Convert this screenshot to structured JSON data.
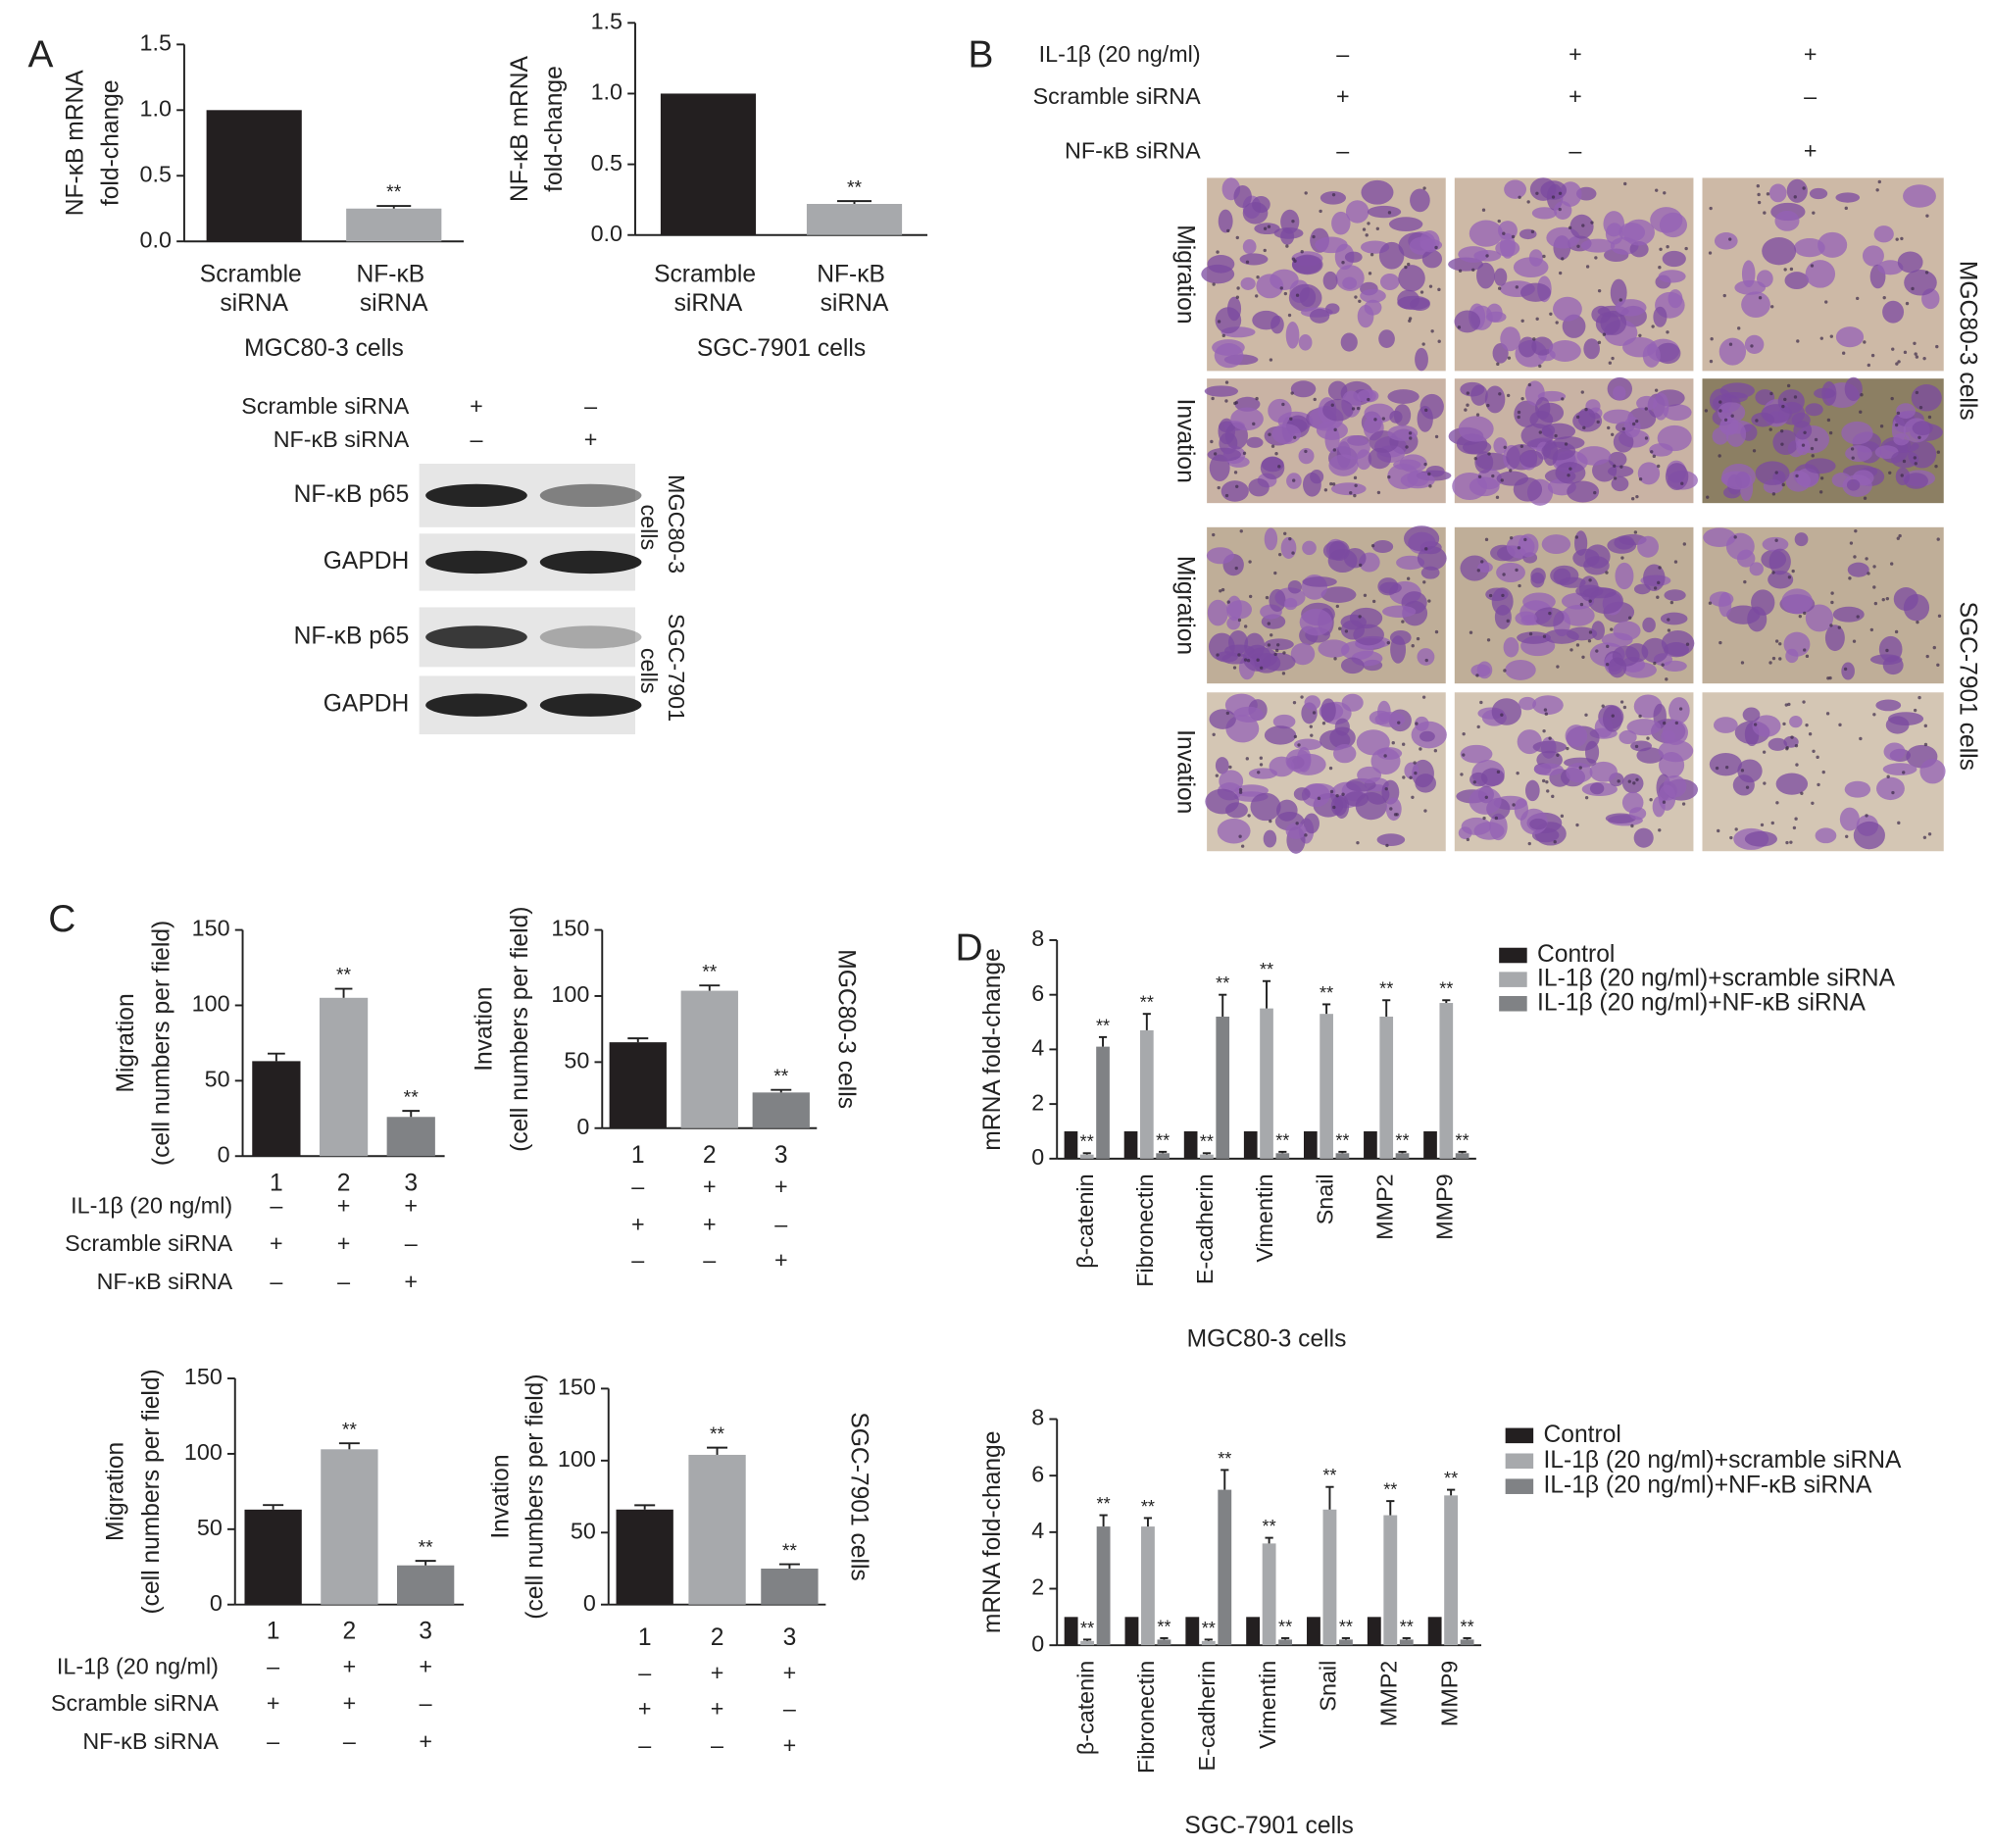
{
  "chart_data": [
    {
      "type": "bar",
      "y_label": [
        "NF-κB mRNA",
        "fold-change"
      ],
      "categories": [
        "Scramble siRNA",
        "NF-κB siRNA"
      ],
      "values": [
        1.0,
        0.25
      ],
      "errors": [
        null,
        0.02
      ],
      "significance": [
        null,
        "**"
      ],
      "colors": [
        "#231f20",
        "#a7a9ac"
      ],
      "x_label": "MGC80-3 cells",
      "ylim": [
        0,
        1.5
      ],
      "yticks": [
        {
          "value": 0,
          "label": "0.0"
        },
        0.5,
        {
          "value": 1,
          "label": "1.0"
        },
        1.5
      ]
    },
    {
      "type": "bar",
      "y_label": [
        "NF-κB mRNA",
        "fold-change"
      ],
      "categories": [
        "Scramble siRNA",
        "NF-κB siRNA"
      ],
      "values": [
        1.0,
        0.22
      ],
      "errors": [
        null,
        0.02
      ],
      "significance": [
        null,
        "**"
      ],
      "colors": [
        "#231f20",
        "#a7a9ac"
      ],
      "x_label": "SGC-7901 cells",
      "ylim": [
        0,
        1.5
      ],
      "yticks": [
        {
          "value": 0,
          "label": "0.0"
        },
        0.5,
        {
          "value": 1,
          "label": "1.0"
        },
        1.5
      ]
    },
    {
      "type": "bar",
      "y_label": [
        "Migration",
        "(cell numbers per field)"
      ],
      "categories": [
        "1",
        "2",
        "3"
      ],
      "values": [
        63,
        105,
        26
      ],
      "errors": [
        5,
        6,
        4
      ],
      "significance": [
        null,
        "**",
        "**"
      ],
      "colors": [
        "#231f20",
        "#a7a9ac",
        "#808285"
      ],
      "ylim": [
        0,
        150
      ],
      "yticks": [
        0,
        50,
        100,
        150
      ],
      "conditions": [
        {
          "name": "IL-1β (20 ng/ml)",
          "signs": [
            "–",
            "+",
            "+"
          ]
        },
        {
          "name": "Scramble siRNA",
          "signs": [
            "+",
            "+",
            "–"
          ]
        },
        {
          "name": "NF-κB siRNA",
          "signs": [
            "–",
            "–",
            "+"
          ]
        }
      ]
    },
    {
      "type": "bar",
      "y_label": [
        "Invation",
        "(cell numbers per field)"
      ],
      "categories": [
        "1",
        "2",
        "3"
      ],
      "values": [
        65,
        104,
        27
      ],
      "errors": [
        3,
        4,
        2
      ],
      "significance": [
        null,
        "**",
        "**"
      ],
      "colors": [
        "#231f20",
        "#a7a9ac",
        "#808285"
      ],
      "ylim": [
        0,
        150
      ],
      "yticks": [
        0,
        50,
        100,
        150
      ],
      "conditions": [
        {
          "signs": [
            "–",
            "+",
            "+"
          ]
        },
        {
          "signs": [
            "+",
            "+",
            "–"
          ]
        },
        {
          "signs": [
            "–",
            "–",
            "+"
          ]
        }
      ],
      "side_label": "MGC80-3 cells"
    },
    {
      "type": "bar",
      "y_label": [
        "Migration",
        "(cell numbers per field)"
      ],
      "categories": [
        "1",
        "2",
        "3"
      ],
      "values": [
        63,
        103,
        26
      ],
      "errors": [
        3,
        4,
        3
      ],
      "significance": [
        null,
        "**",
        "**"
      ],
      "colors": [
        "#231f20",
        "#a7a9ac",
        "#808285"
      ],
      "ylim": [
        0,
        150
      ],
      "yticks": [
        0,
        50,
        100,
        150
      ],
      "conditions": [
        {
          "name": "IL-1β (20 ng/ml)",
          "signs": [
            "–",
            "+",
            "+"
          ]
        },
        {
          "name": "Scramble siRNA",
          "signs": [
            "+",
            "+",
            "–"
          ]
        },
        {
          "name": "NF-κB siRNA",
          "signs": [
            "–",
            "–",
            "+"
          ]
        }
      ]
    },
    {
      "type": "bar",
      "y_label": [
        "Invation",
        "(cell numbers per field)"
      ],
      "categories": [
        "1",
        "2",
        "3"
      ],
      "values": [
        66,
        104,
        25
      ],
      "errors": [
        3,
        5,
        3
      ],
      "significance": [
        null,
        "**",
        "**"
      ],
      "colors": [
        "#231f20",
        "#a7a9ac",
        "#808285"
      ],
      "ylim": [
        0,
        150
      ],
      "yticks": [
        0,
        50,
        100,
        150
      ],
      "conditions": [
        {
          "signs": [
            "–",
            "+",
            "+"
          ]
        },
        {
          "signs": [
            "+",
            "+",
            "–"
          ]
        },
        {
          "signs": [
            "–",
            "–",
            "+"
          ]
        }
      ],
      "side_label": "SGC-7901 cells"
    },
    {
      "type": "bar",
      "y_label": "mRNA fold-change",
      "x_label": "MGC80-3 cells",
      "legend": "right",
      "ylim": [
        0,
        8
      ],
      "yticks": [
        0,
        2,
        4,
        6,
        8
      ],
      "categories": [
        "β-catenin",
        "Fibronectin",
        "E-cadherin",
        "Vimentin",
        "Snail",
        "MMP2",
        "MMP9"
      ],
      "series": [
        {
          "name": "Control",
          "color": "#231f20",
          "values": [
            1,
            1,
            1,
            1,
            1,
            1,
            1
          ]
        },
        {
          "name": "IL-1β (20 ng/ml)+scramble siRNA",
          "color": "#a7a9ac",
          "values": [
            0.15,
            4.7,
            0.15,
            5.5,
            5.3,
            5.2,
            5.7
          ],
          "errors": [
            0.05,
            0.6,
            0.05,
            1.0,
            0.35,
            0.6,
            0.1
          ],
          "significance": [
            "**",
            "**",
            "**",
            "**",
            "**",
            "**",
            "**"
          ]
        },
        {
          "name": "IL-1β (20 ng/ml)+NF-κB siRNA",
          "color": "#808285",
          "values": [
            4.1,
            0.2,
            5.2,
            0.2,
            0.2,
            0.2,
            0.2
          ],
          "errors": [
            0.35,
            0.05,
            0.8,
            0.05,
            0.05,
            0.05,
            0.05
          ],
          "significance": [
            "**",
            "**",
            "**",
            "**",
            "**",
            "**",
            "**"
          ]
        }
      ]
    },
    {
      "type": "bar",
      "y_label": "mRNA fold-change",
      "x_label": "SGC-7901 cells",
      "legend": "right",
      "ylim": [
        0,
        8
      ],
      "yticks": [
        0,
        2,
        4,
        6,
        8
      ],
      "categories": [
        "β-catenin",
        "Fibronectin",
        "E-cadherin",
        "Vimentin",
        "Snail",
        "MMP2",
        "MMP9"
      ],
      "series": [
        {
          "name": "Control",
          "color": "#231f20",
          "values": [
            1,
            1,
            1,
            1,
            1,
            1,
            1
          ]
        },
        {
          "name": "IL-1β (20 ng/ml)+scramble siRNA",
          "color": "#a7a9ac",
          "values": [
            0.15,
            4.2,
            0.15,
            3.6,
            4.8,
            4.6,
            5.3
          ],
          "errors": [
            0.05,
            0.3,
            0.05,
            0.2,
            0.8,
            0.5,
            0.2
          ],
          "significance": [
            "**",
            "**",
            "**",
            "**",
            "**",
            "**",
            "**"
          ]
        },
        {
          "name": "IL-1β (20 ng/ml)+NF-κB siRNA",
          "color": "#808285",
          "values": [
            4.2,
            0.2,
            5.5,
            0.2,
            0.2,
            0.2,
            0.2
          ],
          "errors": [
            0.4,
            0.05,
            0.7,
            0.05,
            0.05,
            0.05,
            0.05
          ],
          "significance": [
            "**",
            "**",
            "**",
            "**",
            "**",
            "**",
            "**"
          ]
        }
      ]
    }
  ],
  "panel_labels": [
    "A",
    "B",
    "C",
    "D"
  ],
  "blot": {
    "conditions": [
      {
        "name": "Scramble siRNA",
        "signs": [
          "+",
          "–"
        ]
      },
      {
        "name": "NF-κB siRNA",
        "signs": [
          "–",
          "+"
        ]
      }
    ],
    "rows": [
      "NF-κB p65",
      "GAPDH",
      "NF-κB p65",
      "GAPDH"
    ],
    "groups": [
      "MGC80-3 cells",
      "SGC-7901 cells"
    ]
  },
  "images": {
    "conditions": [
      {
        "name": "IL-1β (20 ng/ml)",
        "signs": [
          "–",
          "+",
          "+"
        ]
      },
      {
        "name": "Scramble siRNA",
        "signs": [
          "+",
          "+",
          "–"
        ]
      },
      {
        "name": "NF-κB siRNA",
        "signs": [
          "–",
          "–",
          "+"
        ]
      }
    ],
    "rows": [
      "Migration",
      "Invation",
      "Migration",
      "Invation"
    ],
    "groups": [
      "MGC80-3 cells",
      "SGC-7901 cells"
    ]
  }
}
